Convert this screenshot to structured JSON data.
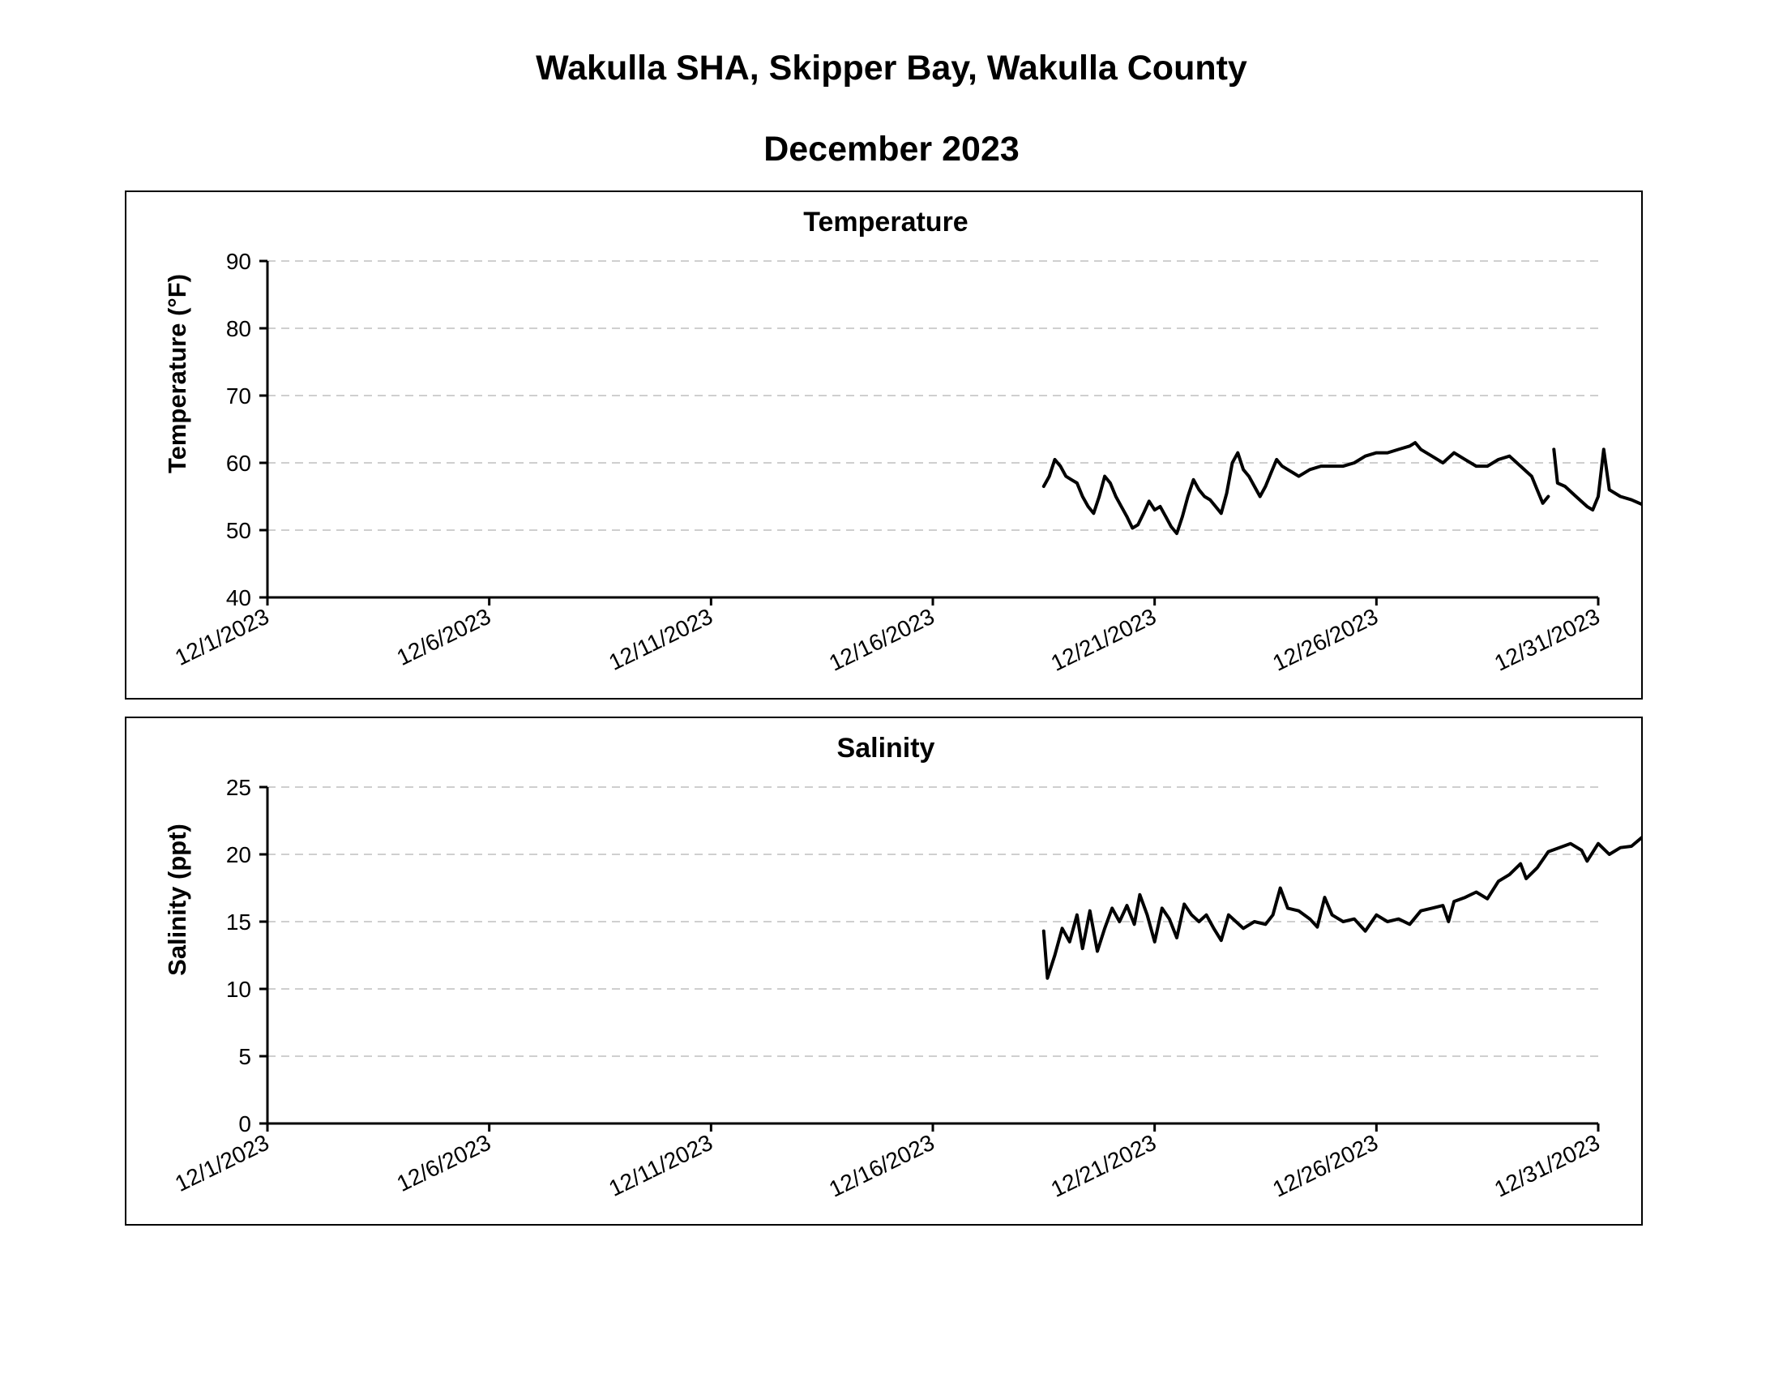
{
  "page": {
    "title": "Wakulla SHA, Skipper Bay, Wakulla County",
    "subtitle": "December 2023"
  },
  "chart_data": [
    {
      "id": "temperature",
      "type": "line",
      "title": "Temperature",
      "xlabel": "",
      "ylabel": "Temperature (°F)",
      "ylim": [
        40,
        90
      ],
      "yticks": [
        40,
        50,
        60,
        70,
        80,
        90
      ],
      "xlim": [
        "2023-12-01",
        "2023-12-31"
      ],
      "xticks": [
        "12/1/2023",
        "12/6/2023",
        "12/11/2023",
        "12/16/2023",
        "12/21/2023",
        "12/26/2023",
        "12/31/2023"
      ],
      "grid": true,
      "segments": [
        [
          [
            "2023-12-18 12:00",
            56.5
          ],
          [
            "2023-12-18 15:00",
            58.0
          ],
          [
            "2023-12-18 18:00",
            60.5
          ],
          [
            "2023-12-18 21:00",
            59.5
          ],
          [
            "2023-12-19 00:00",
            58.0
          ],
          [
            "2023-12-19 03:00",
            57.5
          ],
          [
            "2023-12-19 06:00",
            57.0
          ],
          [
            "2023-12-19 09:00",
            55.0
          ],
          [
            "2023-12-19 12:00",
            53.5
          ],
          [
            "2023-12-19 15:00",
            52.5
          ],
          [
            "2023-12-19 18:00",
            55.0
          ],
          [
            "2023-12-19 21:00",
            58.0
          ],
          [
            "2023-12-20 00:00",
            57.0
          ],
          [
            "2023-12-20 03:00",
            55.0
          ],
          [
            "2023-12-20 06:00",
            53.5
          ],
          [
            "2023-12-20 09:00",
            52.0
          ],
          [
            "2023-12-20 12:00",
            50.3
          ],
          [
            "2023-12-20 15:00",
            50.8
          ],
          [
            "2023-12-20 18:00",
            52.5
          ],
          [
            "2023-12-20 21:00",
            54.3
          ],
          [
            "2023-12-21 00:00",
            53.0
          ],
          [
            "2023-12-21 03:00",
            53.5
          ],
          [
            "2023-12-21 06:00",
            52.0
          ],
          [
            "2023-12-21 09:00",
            50.5
          ],
          [
            "2023-12-21 12:00",
            49.5
          ],
          [
            "2023-12-21 15:00",
            52.0
          ],
          [
            "2023-12-21 18:00",
            55.0
          ],
          [
            "2023-12-21 21:00",
            57.5
          ],
          [
            "2023-12-22 00:00",
            56.0
          ],
          [
            "2023-12-22 03:00",
            55.0
          ],
          [
            "2023-12-22 06:00",
            54.5
          ],
          [
            "2023-12-22 09:00",
            53.5
          ],
          [
            "2023-12-22 12:00",
            52.5
          ],
          [
            "2023-12-22 15:00",
            55.5
          ],
          [
            "2023-12-22 18:00",
            60.0
          ],
          [
            "2023-12-22 21:00",
            61.5
          ],
          [
            "2023-12-23 00:00",
            59.0
          ],
          [
            "2023-12-23 03:00",
            58.0
          ],
          [
            "2023-12-23 06:00",
            56.5
          ],
          [
            "2023-12-23 09:00",
            55.0
          ],
          [
            "2023-12-23 12:00",
            56.5
          ],
          [
            "2023-12-23 15:00",
            58.5
          ],
          [
            "2023-12-23 18:00",
            60.5
          ],
          [
            "2023-12-23 21:00",
            59.5
          ],
          [
            "2023-12-24 00:00",
            59.0
          ],
          [
            "2023-12-24 03:00",
            58.5
          ],
          [
            "2023-12-24 06:00",
            58.0
          ],
          [
            "2023-12-24 09:00",
            58.5
          ],
          [
            "2023-12-24 12:00",
            59.0
          ],
          [
            "2023-12-24 18:00",
            59.5
          ],
          [
            "2023-12-25 00:00",
            59.5
          ],
          [
            "2023-12-25 06:00",
            59.5
          ],
          [
            "2023-12-25 12:00",
            60.0
          ],
          [
            "2023-12-25 18:00",
            61.0
          ],
          [
            "2023-12-26 00:00",
            61.5
          ],
          [
            "2023-12-26 06:00",
            61.5
          ],
          [
            "2023-12-26 12:00",
            62.0
          ],
          [
            "2023-12-26 18:00",
            62.5
          ],
          [
            "2023-12-26 21:00",
            63.0
          ],
          [
            "2023-12-27 00:00",
            62.0
          ],
          [
            "2023-12-27 06:00",
            61.0
          ],
          [
            "2023-12-27 12:00",
            60.0
          ],
          [
            "2023-12-27 18:00",
            61.5
          ],
          [
            "2023-12-28 00:00",
            60.5
          ],
          [
            "2023-12-28 06:00",
            59.5
          ],
          [
            "2023-12-28 12:00",
            59.5
          ],
          [
            "2023-12-28 18:00",
            60.5
          ],
          [
            "2023-12-29 00:00",
            61.0
          ],
          [
            "2023-12-29 06:00",
            59.5
          ],
          [
            "2023-12-29 12:00",
            58.0
          ],
          [
            "2023-12-29 15:00",
            56.0
          ],
          [
            "2023-12-29 18:00",
            54.0
          ],
          [
            "2023-12-29 21:00",
            55.0
          ]
        ],
        [
          [
            "2023-12-30 00:00",
            62.0
          ],
          [
            "2023-12-30 02:00",
            57.0
          ],
          [
            "2023-12-30 06:00",
            56.5
          ],
          [
            "2023-12-30 12:00",
            55.0
          ],
          [
            "2023-12-30 18:00",
            53.5
          ],
          [
            "2023-12-30 21:00",
            53.0
          ],
          [
            "2023-12-31 00:00",
            55.0
          ],
          [
            "2023-12-31 03:00",
            62.0
          ],
          [
            "2023-12-31 06:00",
            56.0
          ],
          [
            "2023-12-31 12:00",
            55.0
          ],
          [
            "2023-12-31 18:00",
            54.5
          ],
          [
            "2024-01-01 00:00",
            53.8
          ]
        ]
      ]
    },
    {
      "id": "salinity",
      "type": "line",
      "title": "Salinity",
      "xlabel": "",
      "ylabel": "Salinity (ppt)",
      "ylim": [
        0,
        25
      ],
      "yticks": [
        0,
        5,
        10,
        15,
        20,
        25
      ],
      "xlim": [
        "2023-12-01",
        "2023-12-31"
      ],
      "xticks": [
        "12/1/2023",
        "12/6/2023",
        "12/11/2023",
        "12/16/2023",
        "12/21/2023",
        "12/26/2023",
        "12/31/2023"
      ],
      "grid": true,
      "segments": [
        [
          [
            "2023-12-18 12:00",
            14.3
          ],
          [
            "2023-12-18 14:00",
            10.8
          ],
          [
            "2023-12-18 18:00",
            12.5
          ],
          [
            "2023-12-18 22:00",
            14.5
          ],
          [
            "2023-12-19 02:00",
            13.5
          ],
          [
            "2023-12-19 06:00",
            15.5
          ],
          [
            "2023-12-19 09:00",
            13.0
          ],
          [
            "2023-12-19 13:00",
            15.8
          ],
          [
            "2023-12-19 17:00",
            12.8
          ],
          [
            "2023-12-19 21:00",
            14.5
          ],
          [
            "2023-12-20 01:00",
            16.0
          ],
          [
            "2023-12-20 05:00",
            15.0
          ],
          [
            "2023-12-20 09:00",
            16.2
          ],
          [
            "2023-12-20 13:00",
            14.8
          ],
          [
            "2023-12-20 16:00",
            17.0
          ],
          [
            "2023-12-20 20:00",
            15.5
          ],
          [
            "2023-12-21 00:00",
            13.5
          ],
          [
            "2023-12-21 04:00",
            16.0
          ],
          [
            "2023-12-21 08:00",
            15.2
          ],
          [
            "2023-12-21 12:00",
            13.8
          ],
          [
            "2023-12-21 16:00",
            16.3
          ],
          [
            "2023-12-21 20:00",
            15.5
          ],
          [
            "2023-12-22 00:00",
            15.0
          ],
          [
            "2023-12-22 04:00",
            15.5
          ],
          [
            "2023-12-22 08:00",
            14.5
          ],
          [
            "2023-12-22 12:00",
            13.6
          ],
          [
            "2023-12-22 16:00",
            15.5
          ],
          [
            "2023-12-22 20:00",
            15.0
          ],
          [
            "2023-12-23 00:00",
            14.5
          ],
          [
            "2023-12-23 06:00",
            15.0
          ],
          [
            "2023-12-23 12:00",
            14.8
          ],
          [
            "2023-12-23 16:00",
            15.5
          ],
          [
            "2023-12-23 20:00",
            17.5
          ],
          [
            "2023-12-24 00:00",
            16.0
          ],
          [
            "2023-12-24 06:00",
            15.8
          ],
          [
            "2023-12-24 12:00",
            15.2
          ],
          [
            "2023-12-24 16:00",
            14.6
          ],
          [
            "2023-12-24 20:00",
            16.8
          ],
          [
            "2023-12-25 00:00",
            15.5
          ],
          [
            "2023-12-25 06:00",
            15.0
          ],
          [
            "2023-12-25 12:00",
            15.2
          ],
          [
            "2023-12-25 18:00",
            14.3
          ],
          [
            "2023-12-26 00:00",
            15.5
          ],
          [
            "2023-12-26 06:00",
            15.0
          ],
          [
            "2023-12-26 12:00",
            15.2
          ],
          [
            "2023-12-26 18:00",
            14.8
          ],
          [
            "2023-12-27 00:00",
            15.8
          ],
          [
            "2023-12-27 06:00",
            16.0
          ],
          [
            "2023-12-27 12:00",
            16.2
          ],
          [
            "2023-12-27 15:00",
            15.0
          ],
          [
            "2023-12-27 18:00",
            16.5
          ],
          [
            "2023-12-28 00:00",
            16.8
          ],
          [
            "2023-12-28 06:00",
            17.2
          ],
          [
            "2023-12-28 12:00",
            16.7
          ],
          [
            "2023-12-28 18:00",
            18.0
          ],
          [
            "2023-12-29 00:00",
            18.5
          ],
          [
            "2023-12-29 06:00",
            19.3
          ],
          [
            "2023-12-29 09:00",
            18.2
          ],
          [
            "2023-12-29 15:00",
            19.0
          ],
          [
            "2023-12-29 21:00",
            20.2
          ],
          [
            "2023-12-30 03:00",
            20.5
          ],
          [
            "2023-12-30 09:00",
            20.8
          ],
          [
            "2023-12-30 15:00",
            20.3
          ],
          [
            "2023-12-30 18:00",
            19.5
          ],
          [
            "2023-12-31 00:00",
            20.8
          ],
          [
            "2023-12-31 06:00",
            20.0
          ],
          [
            "2023-12-31 12:00",
            20.5
          ],
          [
            "2023-12-31 18:00",
            20.6
          ],
          [
            "2024-01-01 00:00",
            21.3
          ]
        ]
      ]
    }
  ]
}
